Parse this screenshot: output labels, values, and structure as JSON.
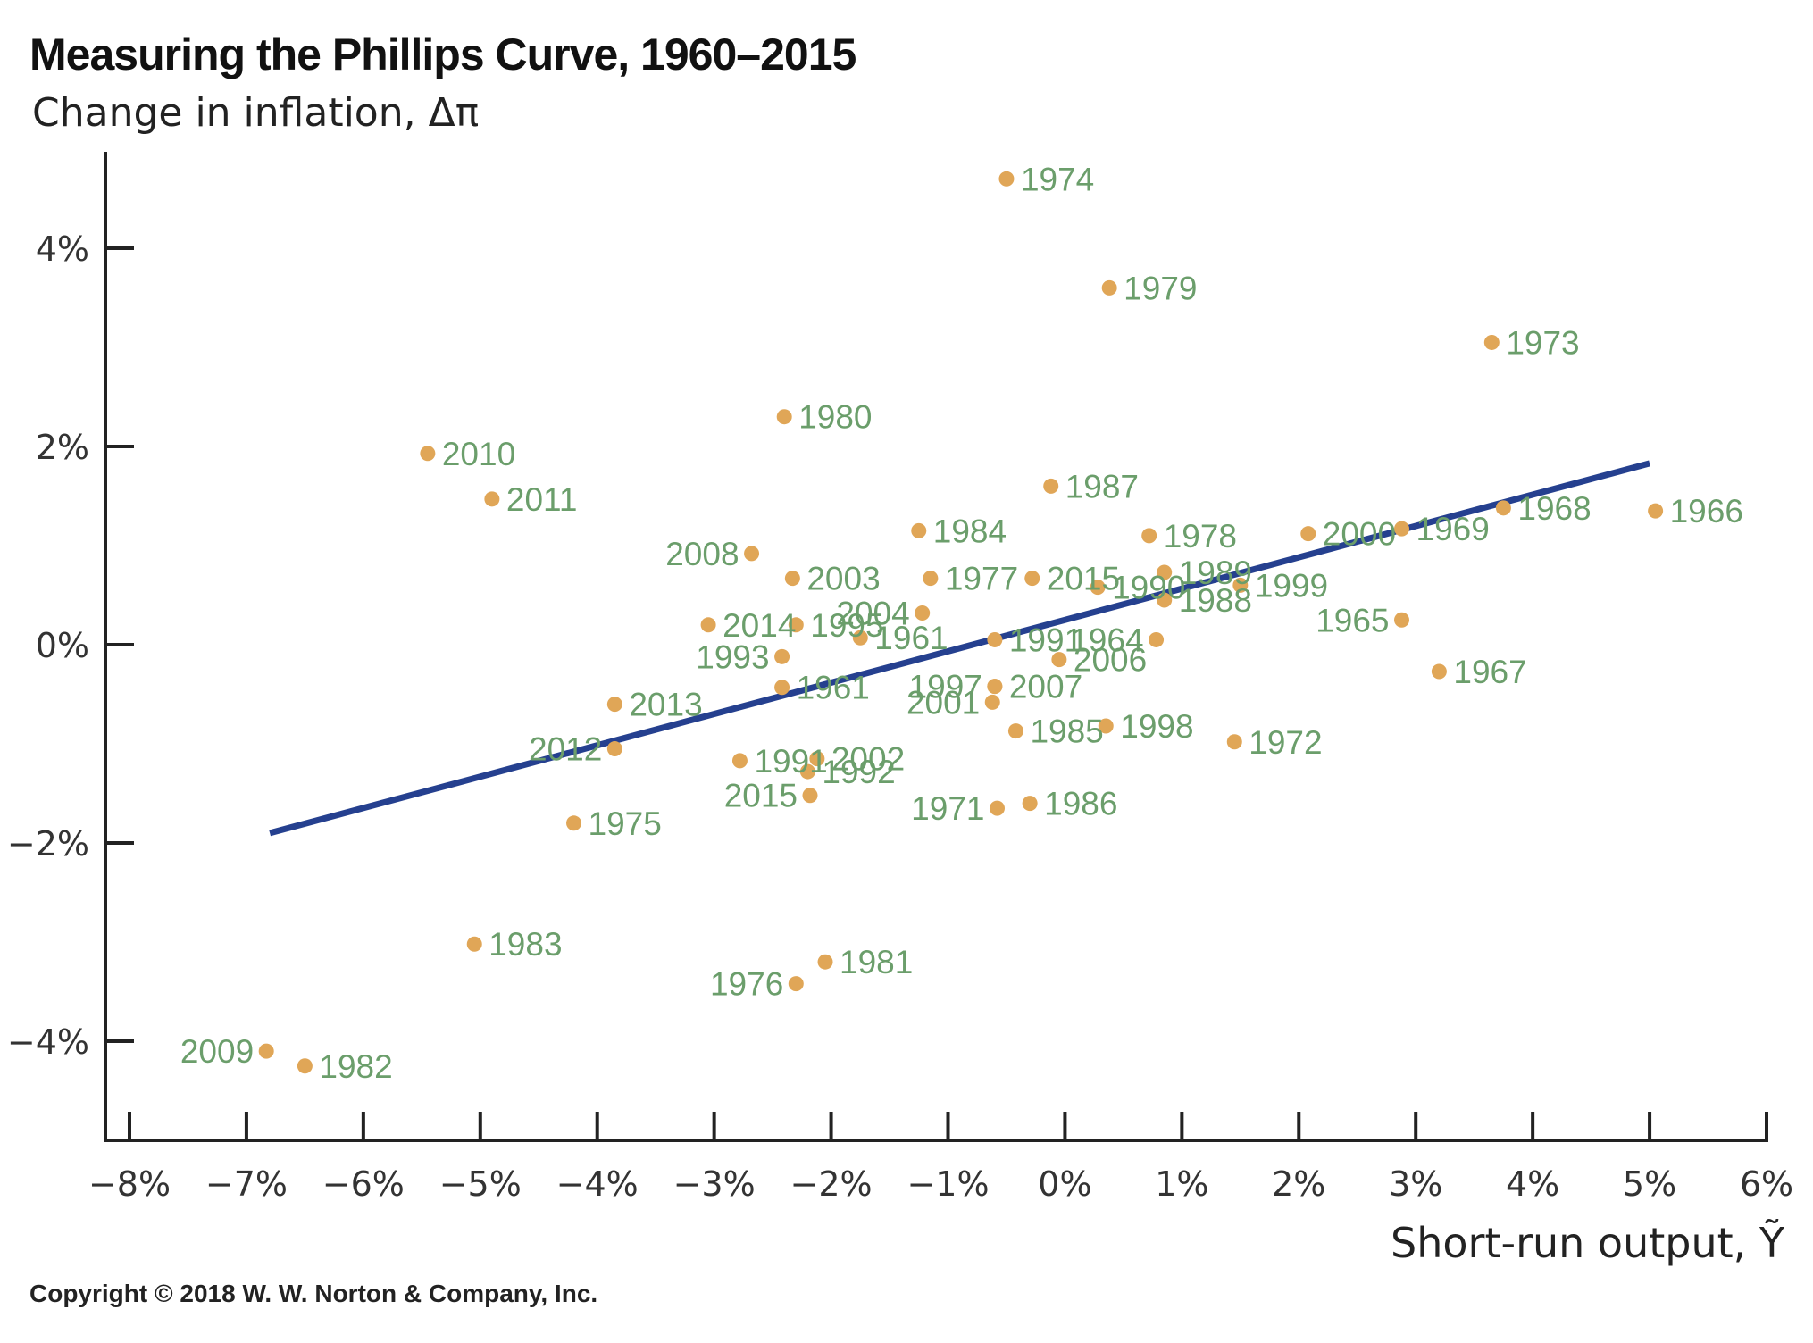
{
  "colors": {
    "point": "#e0a657",
    "label": "#6b9e6b",
    "fit_line": "#25408f",
    "axis": "#222222"
  },
  "copyright": "Copyright © 2018 W. W. Norton & Company, Inc.",
  "chart_data": {
    "type": "scatter",
    "title": "Measuring the Phillips Curve, 1960–2015",
    "ylabel": "Change in inflation, Δπ",
    "xlabel": "Short-run output, Ỹ",
    "xlim": [
      -8,
      6
    ],
    "ylim": [
      -5,
      5
    ],
    "x_ticks": [
      -8,
      -7,
      -6,
      -5,
      -4,
      -3,
      -2,
      -1,
      0,
      1,
      2,
      3,
      4,
      5,
      6
    ],
    "x_tick_labels": [
      "−8%",
      "−7%",
      "−6%",
      "−5%",
      "−4%",
      "−3%",
      "−2%",
      "−1%",
      "0%",
      "1%",
      "2%",
      "3%",
      "4%",
      "5%",
      "6%"
    ],
    "y_ticks": [
      -4,
      -2,
      0,
      2,
      4
    ],
    "y_tick_labels": [
      "−4%",
      "−2%",
      "0%",
      "2%",
      "4%"
    ],
    "grid": false,
    "fit_line": {
      "x": [
        -6.8,
        5.0
      ],
      "y": [
        -1.9,
        1.83
      ]
    },
    "points": [
      {
        "label": "1974",
        "x": -0.5,
        "y": 4.7,
        "pos": "right"
      },
      {
        "label": "1979",
        "x": 0.38,
        "y": 3.6,
        "pos": "right"
      },
      {
        "label": "1973",
        "x": 3.65,
        "y": 3.05,
        "pos": "right"
      },
      {
        "label": "1980",
        "x": -2.4,
        "y": 2.3,
        "pos": "right"
      },
      {
        "label": "2010",
        "x": -5.45,
        "y": 1.93,
        "pos": "right"
      },
      {
        "label": "2011",
        "x": -4.9,
        "y": 1.47,
        "pos": "right"
      },
      {
        "label": "1987",
        "x": -0.12,
        "y": 1.6,
        "pos": "right"
      },
      {
        "label": "1978",
        "x": 0.72,
        "y": 1.1,
        "pos": "right"
      },
      {
        "label": "1968",
        "x": 3.75,
        "y": 1.38,
        "pos": "right"
      },
      {
        "label": "1966",
        "x": 5.05,
        "y": 1.35,
        "pos": "right"
      },
      {
        "label": "2000",
        "x": 2.08,
        "y": 1.12,
        "pos": "right"
      },
      {
        "label": "1969",
        "x": 2.88,
        "y": 1.17,
        "pos": "right"
      },
      {
        "label": "1984",
        "x": -1.25,
        "y": 1.15,
        "pos": "right"
      },
      {
        "label": "2008",
        "x": -2.68,
        "y": 0.92,
        "pos": "left"
      },
      {
        "label": "2003",
        "x": -2.33,
        "y": 0.67,
        "pos": "right"
      },
      {
        "label": "1977",
        "x": -1.15,
        "y": 0.67,
        "pos": "right"
      },
      {
        "label": "2015",
        "x": -0.28,
        "y": 0.67,
        "pos": "right"
      },
      {
        "label": "1990",
        "x": 0.28,
        "y": 0.58,
        "pos": "right"
      },
      {
        "label": "1989",
        "x": 0.85,
        "y": 0.73,
        "pos": "right"
      },
      {
        "label": "1988",
        "x": 0.85,
        "y": 0.45,
        "pos": "right"
      },
      {
        "label": "1999",
        "x": 1.5,
        "y": 0.6,
        "pos": "right"
      },
      {
        "label": "2004",
        "x": -1.22,
        "y": 0.32,
        "pos": "left"
      },
      {
        "label": "2014",
        "x": -3.05,
        "y": 0.2,
        "pos": "right"
      },
      {
        "label": "1995",
        "x": -2.3,
        "y": 0.2,
        "pos": "right"
      },
      {
        "label": "1961",
        "x": -1.75,
        "y": 0.07,
        "pos": "right"
      },
      {
        "label": "1991",
        "x": -0.6,
        "y": 0.05,
        "pos": "right"
      },
      {
        "label": "1993",
        "x": -2.42,
        "y": -0.12,
        "pos": "left"
      },
      {
        "label": "1965",
        "x": 2.88,
        "y": 0.25,
        "pos": "left"
      },
      {
        "label": "1964",
        "x": 0.78,
        "y": 0.05,
        "pos": "left"
      },
      {
        "label": "2006",
        "x": -0.05,
        "y": -0.15,
        "pos": "right"
      },
      {
        "label": "1967",
        "x": 3.2,
        "y": -0.27,
        "pos": "right"
      },
      {
        "label": "1961",
        "x": -2.42,
        "y": -0.43,
        "pos": "right"
      },
      {
        "label": "1997",
        "x": -0.6,
        "y": -0.42,
        "pos": "left"
      },
      {
        "label": "2007",
        "x": -0.6,
        "y": -0.42,
        "pos": "right"
      },
      {
        "label": "2001",
        "x": -0.62,
        "y": -0.58,
        "pos": "left"
      },
      {
        "label": "2013",
        "x": -3.85,
        "y": -0.6,
        "pos": "right"
      },
      {
        "label": "1985",
        "x": -0.42,
        "y": -0.87,
        "pos": "right"
      },
      {
        "label": "1998",
        "x": 0.35,
        "y": -0.82,
        "pos": "right"
      },
      {
        "label": "1972",
        "x": 1.45,
        "y": -0.98,
        "pos": "right"
      },
      {
        "label": "2012",
        "x": -3.85,
        "y": -1.05,
        "pos": "left"
      },
      {
        "label": "1991",
        "x": -2.78,
        "y": -1.17,
        "pos": "right"
      },
      {
        "label": "2002",
        "x": -2.12,
        "y": -1.15,
        "pos": "right"
      },
      {
        "label": "1992",
        "x": -2.2,
        "y": -1.28,
        "pos": "right"
      },
      {
        "label": "2015",
        "x": -2.18,
        "y": -1.52,
        "pos": "left"
      },
      {
        "label": "1971",
        "x": -0.58,
        "y": -1.65,
        "pos": "left"
      },
      {
        "label": "1986",
        "x": -0.3,
        "y": -1.6,
        "pos": "right"
      },
      {
        "label": "1975",
        "x": -4.2,
        "y": -1.8,
        "pos": "right"
      },
      {
        "label": "1983",
        "x": -5.05,
        "y": -3.02,
        "pos": "right"
      },
      {
        "label": "1981",
        "x": -2.05,
        "y": -3.2,
        "pos": "right"
      },
      {
        "label": "1976",
        "x": -2.3,
        "y": -3.42,
        "pos": "left"
      },
      {
        "label": "2009",
        "x": -6.83,
        "y": -4.1,
        "pos": "left"
      },
      {
        "label": "1982",
        "x": -6.5,
        "y": -4.25,
        "pos": "right"
      }
    ]
  }
}
